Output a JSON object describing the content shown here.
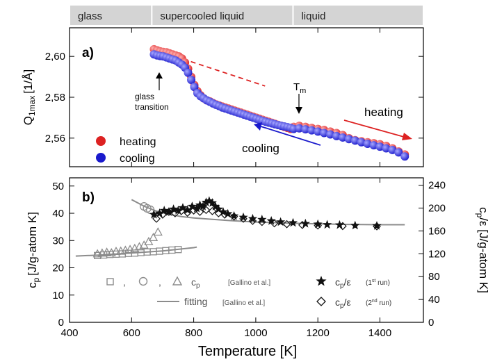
{
  "colors": {
    "heating": "#dd2222",
    "cooling": "#1a1acc",
    "gray": "#8c8c8c",
    "black": "#111111",
    "band": "#d4d4d4"
  },
  "chart_data": [
    {
      "panel_label": "a)",
      "type": "scatter",
      "phase_bands": [
        {
          "label": "glass",
          "x_range": [
            400,
            665
          ]
        },
        {
          "label": "supercooled liquid",
          "x_range": [
            665,
            1120
          ]
        },
        {
          "label": "liquid",
          "x_range": [
            1120,
            1540
          ]
        }
      ],
      "xlim": [
        400,
        1540
      ],
      "ylim": [
        2.546,
        2.614
      ],
      "yticks": [
        "2,56",
        "2,58",
        "2,60"
      ],
      "yticks_values": [
        2.56,
        2.58,
        2.6
      ],
      "ylabel_main": "Q",
      "ylabel_sub": "1max",
      "ylabel_unit": "[1/Å]",
      "series": [
        {
          "name": "heating",
          "color_key": "heating",
          "x": [
            672,
            682,
            692,
            702,
            712,
            722,
            732,
            742,
            752,
            762,
            772,
            782,
            792,
            802,
            812,
            822,
            832,
            842,
            852,
            862,
            872,
            882,
            892,
            902,
            912,
            922,
            932,
            942,
            952,
            962,
            972,
            982,
            992,
            1002,
            1012,
            1022,
            1032,
            1042,
            1052,
            1062,
            1072,
            1082,
            1092,
            1102,
            1112,
            1122,
            1140,
            1160,
            1180,
            1200,
            1220,
            1240,
            1260,
            1280,
            1300,
            1320,
            1340,
            1360,
            1380,
            1400,
            1420,
            1440,
            1460,
            1480
          ],
          "y": [
            2.6035,
            2.603,
            2.6025,
            2.6022,
            2.602,
            2.6015,
            2.601,
            2.6005,
            2.6,
            2.599,
            2.597,
            2.594,
            2.59,
            2.586,
            2.583,
            2.581,
            2.5795,
            2.5785,
            2.578,
            2.5772,
            2.5765,
            2.576,
            2.5755,
            2.575,
            2.5745,
            2.574,
            2.5735,
            2.573,
            2.5725,
            2.572,
            2.5715,
            2.571,
            2.5705,
            2.57,
            2.5695,
            2.569,
            2.5685,
            2.568,
            2.5675,
            2.567,
            2.5665,
            2.566,
            2.5655,
            2.565,
            2.5645,
            2.5655,
            2.566,
            2.5655,
            2.565,
            2.5645,
            2.564,
            2.5632,
            2.5625,
            2.5615,
            2.56,
            2.559,
            2.5585,
            2.558,
            2.5575,
            2.557,
            2.5562,
            2.555,
            2.5535,
            2.552
          ]
        },
        {
          "name": "cooling",
          "color_key": "cooling",
          "x": [
            672,
            682,
            692,
            702,
            712,
            722,
            732,
            742,
            752,
            762,
            772,
            782,
            792,
            802,
            812,
            822,
            832,
            842,
            852,
            862,
            872,
            882,
            892,
            902,
            912,
            922,
            932,
            942,
            952,
            962,
            972,
            982,
            992,
            1002,
            1012,
            1022,
            1032,
            1042,
            1052,
            1062,
            1072,
            1082,
            1092,
            1102,
            1112,
            1122,
            1140,
            1160,
            1180,
            1200,
            1220,
            1240,
            1260,
            1280,
            1300,
            1320,
            1340,
            1360,
            1380,
            1400,
            1420,
            1440,
            1460,
            1480
          ],
          "y": [
            2.601,
            2.6005,
            2.6002,
            2.6,
            2.5995,
            2.599,
            2.5985,
            2.598,
            2.597,
            2.596,
            2.5945,
            2.592,
            2.5885,
            2.585,
            2.582,
            2.5805,
            2.5795,
            2.5785,
            2.5778,
            2.577,
            2.5763,
            2.5757,
            2.575,
            2.5745,
            2.574,
            2.5735,
            2.573,
            2.5725,
            2.572,
            2.5715,
            2.571,
            2.5705,
            2.57,
            2.5695,
            2.569,
            2.5685,
            2.568,
            2.5676,
            2.5672,
            2.5668,
            2.5664,
            2.566,
            2.5657,
            2.5654,
            2.565,
            2.5645,
            2.5648,
            2.5643,
            2.5638,
            2.5632,
            2.5625,
            2.5618,
            2.561,
            2.5603,
            2.5595,
            2.5588,
            2.558,
            2.5572,
            2.5565,
            2.5558,
            2.555,
            2.5542,
            2.553,
            2.551
          ]
        }
      ],
      "extrapolation_line": {
        "x": [
          740,
          1030
        ],
        "y": [
          2.6,
          2.5855
        ]
      },
      "legend": {
        "position": "left",
        "entries": [
          {
            "label": "heating",
            "color_key": "heating"
          },
          {
            "label": "cooling",
            "color_key": "cooling"
          }
        ]
      },
      "annotations": {
        "glass_transition_line1": "glass",
        "glass_transition_line2": "transition",
        "tm_main": "T",
        "tm_sub": "m",
        "heating_label": "heating",
        "cooling_label": "cooling"
      }
    },
    {
      "panel_label": "b)",
      "type": "scatter",
      "xlim": [
        400,
        1540
      ],
      "ylim": [
        0,
        53
      ],
      "ylim_right": [
        0,
        253
      ],
      "xticks": [
        400,
        600,
        800,
        1000,
        1200,
        1400
      ],
      "yticks": [
        0,
        10,
        20,
        30,
        40,
        50
      ],
      "yticks_right": [
        0,
        40,
        80,
        120,
        160,
        200,
        240
      ],
      "xlabel": "Temperature [K]",
      "ylabel_main": "c",
      "ylabel_sub": "p",
      "ylabel_unit": "[J/g-atom K]",
      "ylabel_right_main": "c",
      "ylabel_right_sub": "p",
      "ylabel_right_unit": "/ε [J/g-atom K]",
      "series": [
        {
          "name": "c_p squares (Gallino et al.)",
          "marker": "square",
          "color_key": "gray",
          "x": [
            490,
            510,
            530,
            550,
            570,
            590,
            610,
            630,
            650,
            670,
            690,
            710,
            730,
            750
          ],
          "y": [
            24.5,
            24.7,
            24.9,
            25.0,
            25.1,
            25.3,
            25.4,
            25.6,
            25.8,
            25.9,
            26.1,
            26.3,
            26.5,
            26.7
          ]
        },
        {
          "name": "c_p triangles (Gallino et al.)",
          "marker": "triangle",
          "color_key": "gray",
          "x": [
            490,
            505,
            520,
            535,
            550,
            565,
            580,
            595,
            610,
            625,
            640,
            655,
            670,
            685
          ],
          "y": [
            25.0,
            25.3,
            25.6,
            25.4,
            25.9,
            26.0,
            26.3,
            26.6,
            27.0,
            27.6,
            28.2,
            29.5,
            31.0,
            33.0
          ]
        },
        {
          "name": "c_p circles (Gallino et al.)",
          "marker": "circle",
          "color_key": "gray",
          "x": [
            640,
            650,
            660
          ],
          "y": [
            42.5,
            41.8,
            41.3
          ]
        },
        {
          "name": "c_p/ε (1st run)",
          "marker": "star",
          "color_key": "black",
          "x": [
            672,
            690,
            705,
            720,
            735,
            750,
            765,
            780,
            795,
            810,
            820,
            830,
            840,
            850,
            860,
            870,
            880,
            895,
            910,
            930,
            960,
            990,
            1020,
            1050,
            1080,
            1120,
            1160,
            1200,
            1230,
            1270,
            1320,
            1390
          ],
          "y": [
            39.5,
            40.0,
            41.0,
            40.5,
            41.5,
            41.0,
            42.0,
            41.2,
            42.5,
            41.8,
            43.0,
            42.5,
            44.0,
            44.5,
            43.8,
            42.5,
            41.5,
            40.5,
            39.8,
            39.0,
            38.5,
            38.0,
            37.7,
            37.2,
            36.8,
            36.5,
            36.2,
            36.0,
            35.8,
            35.7,
            35.5,
            35.4
          ]
        },
        {
          "name": "c_p/ε (2nd run)",
          "marker": "diamond",
          "color_key": "black",
          "x": [
            680,
            700,
            720,
            740,
            760,
            780,
            800,
            820,
            840,
            860,
            880,
            900,
            930,
            960,
            990,
            1020,
            1060,
            1100,
            1150,
            1200,
            1280,
            1390
          ],
          "y": [
            38.0,
            39.5,
            40.5,
            40.0,
            40.8,
            40.2,
            41.0,
            40.5,
            41.2,
            40.8,
            40.0,
            39.5,
            38.8,
            38.0,
            37.2,
            36.8,
            36.3,
            36.0,
            35.7,
            35.5,
            35.3,
            35.2
          ]
        }
      ],
      "fit_low": {
        "x": [
          420,
          500,
          600,
          700,
          800,
          810
        ],
        "y": [
          24.3,
          24.7,
          25.4,
          26.2,
          27.4,
          27.6
        ]
      },
      "fit_high": {
        "x": [
          600,
          640,
          680,
          720,
          760,
          800,
          860,
          920,
          1000,
          1100,
          1200,
          1300,
          1400,
          1480
        ],
        "y": [
          45.0,
          42.6,
          40.8,
          39.6,
          38.8,
          38.3,
          37.8,
          37.3,
          36.8,
          36.4,
          36.1,
          35.9,
          35.8,
          35.8
        ]
      },
      "legend": {
        "position": "bottom",
        "sep1": ",",
        "sep2": ",",
        "cp_main": "c",
        "cp_sub": "p",
        "gallino_ref": "[Gallino et al.]",
        "fitting_label": "fitting",
        "fitting_ref": "[Gallino et al.]",
        "run1_main": "c",
        "run1_sub": "p",
        "run1_div": "/ε",
        "run1_note_pre": "(1",
        "run1_note_sup": "st",
        "run1_note_post": " run)",
        "run2_main": "c",
        "run2_sub": "p",
        "run2_div": "/ε",
        "run2_note_pre": "(2",
        "run2_note_sup": "nd",
        "run2_note_post": " run)"
      }
    }
  ]
}
